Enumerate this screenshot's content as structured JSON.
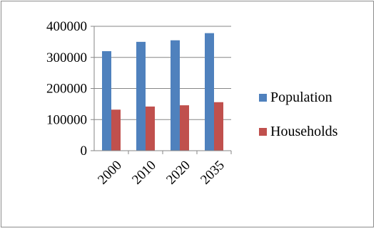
{
  "chart_data": {
    "type": "bar",
    "title": "",
    "xlabel": "",
    "ylabel": "",
    "categories": [
      "2000",
      "2010",
      "2020",
      "2035"
    ],
    "series": [
      {
        "name": "Population",
        "values": [
          320000,
          350000,
          355000,
          378000
        ],
        "color": "#4f81bd"
      },
      {
        "name": "Households",
        "values": [
          132000,
          142000,
          146000,
          156000
        ],
        "color": "#c0504d"
      }
    ],
    "ylim": [
      0,
      400000
    ],
    "yticks": [
      "0",
      "100000",
      "200000",
      "300000",
      "400000"
    ],
    "grid": true,
    "legend": "right"
  }
}
